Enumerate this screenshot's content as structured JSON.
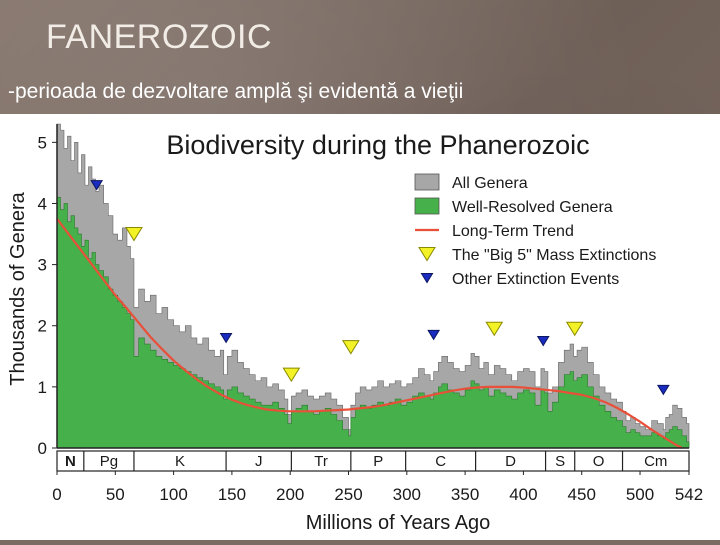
{
  "slide": {
    "title": "FANEROZOIC",
    "subtitle": "-perioada de dezvoltare amplă şi evidentă a vieţii"
  },
  "chart_data": {
    "type": "area",
    "title": "Biodiversity during the Phanerozoic",
    "xlabel": "Millions of Years Ago",
    "ylabel": "Thousands of Genera",
    "xlim": [
      0,
      542
    ],
    "ylim": [
      0,
      5.3
    ],
    "x_reversed": false,
    "x_ticks": [
      0,
      50,
      100,
      150,
      200,
      250,
      300,
      350,
      400,
      450,
      500,
      542
    ],
    "y_ticks": [
      0,
      1,
      2,
      3,
      4,
      5
    ],
    "legend": {
      "position": "top-right",
      "entries": [
        {
          "label": "All Genera",
          "kind": "area",
          "color": "#a7a7a7"
        },
        {
          "label": "Well-Resolved Genera",
          "kind": "area",
          "color": "#46b04a"
        },
        {
          "label": "Long-Term Trend",
          "kind": "line",
          "color": "#e8503a"
        },
        {
          "label": "The \"Big 5\" Mass Extinctions",
          "kind": "big-triangle",
          "color": "#f2f227"
        },
        {
          "label": "Other Extinction Events",
          "kind": "small-triangle",
          "color": "#1a2bbf"
        }
      ]
    },
    "series": [
      {
        "name": "All Genera",
        "color": "#a7a7a7",
        "x": [
          0,
          3,
          6,
          9,
          12,
          15,
          18,
          21,
          24,
          27,
          30,
          33,
          36,
          40,
          44,
          48,
          52,
          56,
          60,
          63,
          66,
          70,
          75,
          80,
          85,
          90,
          95,
          100,
          105,
          110,
          115,
          120,
          125,
          130,
          135,
          140,
          143,
          146,
          150,
          155,
          160,
          165,
          170,
          175,
          180,
          185,
          190,
          195,
          198,
          201,
          205,
          210,
          215,
          220,
          225,
          230,
          235,
          240,
          245,
          250,
          252,
          256,
          260,
          265,
          270,
          275,
          280,
          285,
          290,
          295,
          300,
          305,
          310,
          315,
          320,
          323,
          327,
          330,
          335,
          340,
          345,
          350,
          355,
          358,
          362,
          366,
          370,
          375,
          380,
          385,
          390,
          395,
          400,
          405,
          410,
          415,
          418,
          421,
          425,
          430,
          435,
          440,
          443,
          446,
          450,
          455,
          460,
          465,
          470,
          475,
          480,
          485,
          488,
          492,
          496,
          500,
          505,
          510,
          515,
          520,
          522,
          525,
          528,
          532,
          536,
          540,
          542
        ],
        "values": [
          5.3,
          5.2,
          4.9,
          5.1,
          4.7,
          5.0,
          4.5,
          4.8,
          4.3,
          4.6,
          4.4,
          4.2,
          4.3,
          4.0,
          3.8,
          3.5,
          3.4,
          3.6,
          3.3,
          3.1,
          2.3,
          2.6,
          2.4,
          2.5,
          2.2,
          2.3,
          2.1,
          2.0,
          1.9,
          2.0,
          1.8,
          1.7,
          1.8,
          1.6,
          1.5,
          1.6,
          1.2,
          1.5,
          1.6,
          1.4,
          1.3,
          1.2,
          1.1,
          1.15,
          1.0,
          1.05,
          0.95,
          0.8,
          0.55,
          0.85,
          0.9,
          0.95,
          0.85,
          0.8,
          0.85,
          0.9,
          0.8,
          0.7,
          0.5,
          0.3,
          0.7,
          0.9,
          1.0,
          0.95,
          1.0,
          1.1,
          1.0,
          1.05,
          1.1,
          1.0,
          1.05,
          1.15,
          1.3,
          1.2,
          1.1,
          1.25,
          1.4,
          1.5,
          1.4,
          1.3,
          1.25,
          1.35,
          1.55,
          1.5,
          1.3,
          1.4,
          1.2,
          1.35,
          1.3,
          1.2,
          1.1,
          1.25,
          1.3,
          1.25,
          1.0,
          1.3,
          1.25,
          0.9,
          1.0,
          1.4,
          1.6,
          1.7,
          1.5,
          1.6,
          1.65,
          1.4,
          1.2,
          1.0,
          0.9,
          0.8,
          0.75,
          0.6,
          0.45,
          0.5,
          0.4,
          0.35,
          0.3,
          0.45,
          0.4,
          0.3,
          0.5,
          0.55,
          0.7,
          0.65,
          0.5,
          0.4,
          0.2
        ]
      },
      {
        "name": "Well-Resolved Genera",
        "color": "#46b04a",
        "x": [
          0,
          3,
          6,
          9,
          12,
          15,
          18,
          21,
          24,
          27,
          30,
          33,
          36,
          40,
          44,
          48,
          52,
          56,
          60,
          63,
          66,
          70,
          75,
          80,
          85,
          90,
          95,
          100,
          105,
          110,
          115,
          120,
          125,
          130,
          135,
          140,
          143,
          146,
          150,
          155,
          160,
          165,
          170,
          175,
          180,
          185,
          190,
          195,
          198,
          201,
          205,
          210,
          215,
          220,
          225,
          230,
          235,
          240,
          245,
          250,
          252,
          256,
          260,
          265,
          270,
          275,
          280,
          285,
          290,
          295,
          300,
          305,
          310,
          315,
          320,
          323,
          327,
          330,
          335,
          340,
          345,
          350,
          355,
          358,
          362,
          366,
          370,
          375,
          380,
          385,
          390,
          395,
          400,
          405,
          410,
          415,
          418,
          421,
          425,
          430,
          435,
          440,
          443,
          446,
          450,
          455,
          460,
          465,
          470,
          475,
          480,
          485,
          488,
          492,
          496,
          500,
          505,
          510,
          515,
          520,
          522,
          525,
          528,
          532,
          536,
          540,
          542
        ],
        "values": [
          4.1,
          3.9,
          4.0,
          3.7,
          3.8,
          3.6,
          3.5,
          3.3,
          3.4,
          3.1,
          3.2,
          3.0,
          2.9,
          2.8,
          2.6,
          2.5,
          2.4,
          2.3,
          2.2,
          2.1,
          1.5,
          1.8,
          1.7,
          1.6,
          1.5,
          1.45,
          1.4,
          1.35,
          1.3,
          1.25,
          1.2,
          1.15,
          1.1,
          1.05,
          1.0,
          0.95,
          0.8,
          0.95,
          1.0,
          0.9,
          0.85,
          0.8,
          0.75,
          0.7,
          0.7,
          0.75,
          0.65,
          0.55,
          0.4,
          0.6,
          0.65,
          0.7,
          0.6,
          0.55,
          0.6,
          0.65,
          0.55,
          0.45,
          0.3,
          0.2,
          0.5,
          0.65,
          0.7,
          0.65,
          0.7,
          0.75,
          0.7,
          0.75,
          0.8,
          0.7,
          0.75,
          0.85,
          0.9,
          0.85,
          0.8,
          0.9,
          1.0,
          1.05,
          0.95,
          0.9,
          0.85,
          0.95,
          1.1,
          1.05,
          0.95,
          1.0,
          0.85,
          0.95,
          0.9,
          0.85,
          0.8,
          0.9,
          0.95,
          0.9,
          0.7,
          0.95,
          0.9,
          0.6,
          0.75,
          1.0,
          1.2,
          1.25,
          1.1,
          1.15,
          1.2,
          1.0,
          0.85,
          0.7,
          0.6,
          0.5,
          0.45,
          0.35,
          0.25,
          0.3,
          0.25,
          0.2,
          0.2,
          0.25,
          0.2,
          0.15,
          0.25,
          0.3,
          0.35,
          0.3,
          0.2,
          0.1,
          0.05
        ]
      },
      {
        "name": "Long-Term Trend",
        "color": "#e8503a",
        "kind": "line",
        "x": [
          0,
          10,
          20,
          30,
          40,
          50,
          60,
          70,
          80,
          90,
          100,
          110,
          120,
          130,
          140,
          150,
          160,
          170,
          180,
          190,
          200,
          210,
          220,
          230,
          240,
          250,
          260,
          270,
          280,
          290,
          300,
          310,
          320,
          330,
          340,
          350,
          360,
          370,
          380,
          390,
          400,
          410,
          420,
          430,
          440,
          450,
          460,
          470,
          480,
          490,
          500,
          510,
          520,
          530,
          536
        ],
        "values": [
          3.75,
          3.5,
          3.25,
          3.0,
          2.75,
          2.5,
          2.28,
          2.05,
          1.82,
          1.62,
          1.43,
          1.27,
          1.12,
          0.99,
          0.88,
          0.79,
          0.72,
          0.67,
          0.63,
          0.61,
          0.6,
          0.6,
          0.6,
          0.61,
          0.62,
          0.63,
          0.65,
          0.67,
          0.7,
          0.74,
          0.78,
          0.82,
          0.86,
          0.9,
          0.94,
          0.97,
          0.99,
          1.0,
          1.0,
          1.0,
          0.99,
          0.97,
          0.95,
          0.93,
          0.9,
          0.87,
          0.82,
          0.75,
          0.66,
          0.55,
          0.43,
          0.3,
          0.18,
          0.06,
          0.0
        ]
      }
    ],
    "extinctions": [
      {
        "type": "big-5",
        "x": 66,
        "y": 3.5
      },
      {
        "type": "big-5",
        "x": 201,
        "y": 1.2
      },
      {
        "type": "big-5",
        "x": 252,
        "y": 1.65
      },
      {
        "type": "big-5",
        "x": 375,
        "y": 1.95
      },
      {
        "type": "big-5",
        "x": 444,
        "y": 1.95
      },
      {
        "type": "other",
        "x": 34,
        "y": 4.3
      },
      {
        "type": "other",
        "x": 145,
        "y": 1.8
      },
      {
        "type": "other",
        "x": 323,
        "y": 1.85
      },
      {
        "type": "other",
        "x": 417,
        "y": 1.75
      },
      {
        "type": "other",
        "x": 520,
        "y": 0.95
      }
    ],
    "periods": [
      {
        "label": "N",
        "from": 0,
        "to": 23
      },
      {
        "label": "Pg",
        "from": 23,
        "to": 66
      },
      {
        "label": "K",
        "from": 66,
        "to": 145
      },
      {
        "label": "J",
        "from": 145,
        "to": 201
      },
      {
        "label": "Tr",
        "from": 201,
        "to": 252
      },
      {
        "label": "P",
        "from": 252,
        "to": 299
      },
      {
        "label": "C",
        "from": 299,
        "to": 359
      },
      {
        "label": "D",
        "from": 359,
        "to": 419
      },
      {
        "label": "S",
        "from": 419,
        "to": 444
      },
      {
        "label": "O",
        "from": 444,
        "to": 485
      },
      {
        "label": "Cm",
        "from": 485,
        "to": 542
      }
    ]
  }
}
